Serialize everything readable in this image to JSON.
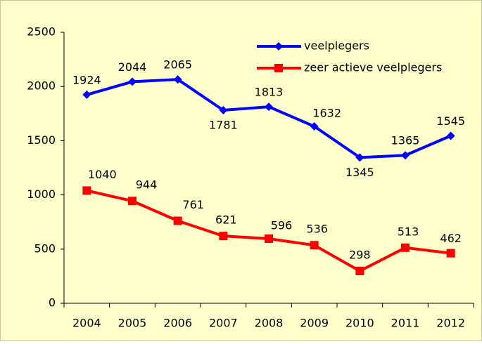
{
  "chart_data": {
    "type": "line",
    "categories": [
      "2004",
      "2005",
      "2006",
      "2007",
      "2008",
      "2009",
      "2010",
      "2011",
      "2012"
    ],
    "series": [
      {
        "name": "veelplegers",
        "color": "#0000ff",
        "marker": "diamond",
        "values": [
          1924,
          2044,
          2065,
          1781,
          1813,
          1632,
          1345,
          1365,
          1545
        ]
      },
      {
        "name": "zeer actieve veelplegers",
        "color": "#ff0000",
        "marker": "square",
        "values": [
          1040,
          944,
          761,
          621,
          596,
          536,
          298,
          513,
          462
        ]
      }
    ],
    "ylim": [
      0,
      2500
    ],
    "yticks": [
      0,
      500,
      1000,
      1500,
      2000,
      2500
    ],
    "grid": false,
    "legend": "top-right",
    "background": "#ffffcc"
  }
}
